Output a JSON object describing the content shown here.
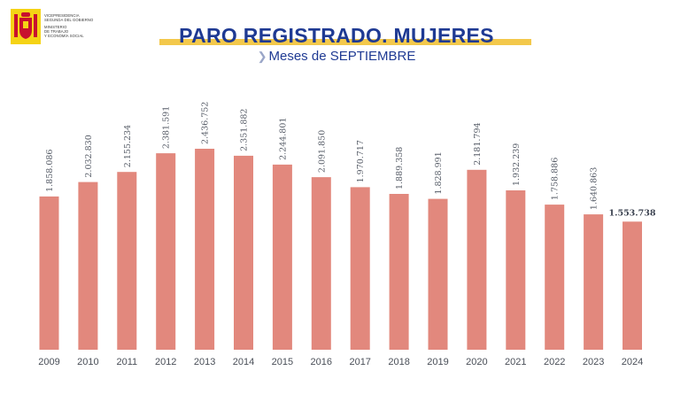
{
  "logo": {
    "lines": [
      "VICEPRESIDENCIA",
      "SEGUNDA DEL GOBIERNO",
      "MINISTERIO",
      "DE TRABAJO",
      "Y ECONOMÍA SOCIAL"
    ]
  },
  "header": {
    "title": "PARO REGISTRADO. MUJERES",
    "subtitle": "Meses de SEPTIEMBRE"
  },
  "colors": {
    "bar": "#e2887d",
    "title": "#1f3a93",
    "accent": "#f3c84b",
    "label": "#555b66"
  },
  "chart_data": {
    "type": "bar",
    "title": "PARO REGISTRADO. MUJERES",
    "subtitle": "Meses de SEPTIEMBRE",
    "categories": [
      "2009",
      "2010",
      "2011",
      "2012",
      "2013",
      "2014",
      "2015",
      "2016",
      "2017",
      "2018",
      "2019",
      "2020",
      "2021",
      "2022",
      "2023",
      "2024"
    ],
    "values": [
      1858086,
      2032830,
      2155234,
      2381591,
      2436752,
      2351882,
      2244801,
      2091850,
      1970717,
      1889358,
      1828991,
      2181794,
      1932239,
      1758886,
      1640863,
      1553738
    ],
    "labels": [
      "1.858.086",
      "2.032.830",
      "2.155.234",
      "2.381.591",
      "2.436.752",
      "2.351.882",
      "2.244.801",
      "2.091.850",
      "1.970.717",
      "1.889.358",
      "1.828.991",
      "2.181.794",
      "1.932.239",
      "1.758.886",
      "1.640.863",
      "1.553.738"
    ],
    "highlight_last_label": true,
    "ylim": [
      0,
      2436752
    ],
    "grid": false,
    "legend": "none"
  }
}
